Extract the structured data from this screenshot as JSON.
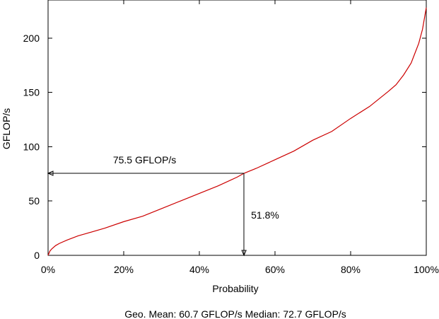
{
  "chart_data": {
    "type": "line",
    "title": "",
    "xlabel": "Probability",
    "ylabel": "GFLOP/s",
    "xlim": [
      0,
      100
    ],
    "ylim": [
      0,
      235
    ],
    "grid": false,
    "legend": "none",
    "x_ticks": [
      0,
      20,
      40,
      60,
      80,
      100
    ],
    "x_tick_labels": [
      "0%",
      "20%",
      "40%",
      "60%",
      "80%",
      "100%"
    ],
    "y_ticks": [
      0,
      50,
      100,
      150,
      200
    ],
    "y_tick_labels": [
      "0",
      "50",
      "100",
      "150",
      "200"
    ],
    "series": [
      {
        "color": "#cc0000",
        "x": [
          0,
          0.5,
          1,
          2,
          3,
          5,
          8,
          10,
          15,
          20,
          25,
          30,
          35,
          40,
          45,
          50,
          51.8,
          55,
          60,
          65,
          70,
          75,
          80,
          85,
          90,
          92,
          94,
          96,
          97,
          98,
          99,
          99.5,
          100
        ],
        "y": [
          0,
          4,
          6,
          9,
          11,
          14,
          18,
          20,
          25,
          31,
          36,
          43,
          50,
          57,
          64,
          72,
          75.5,
          80,
          88,
          96,
          106,
          114,
          126,
          137,
          151,
          157,
          166,
          177,
          186,
          195,
          208,
          218,
          228
        ]
      }
    ],
    "annotations": [
      {
        "text": "75.5 GFLOP/s",
        "type": "horizontal-arrow",
        "x_from": 51.8,
        "x_to": 0,
        "y": 75.5
      },
      {
        "text": "51.8%",
        "type": "vertical-arrow",
        "x": 51.8,
        "y_from": 75.5,
        "y_to": 0
      }
    ],
    "footer": "Geo. Mean: 60.7 GFLOP/s  Median: 72.7 GFLOP/s"
  }
}
